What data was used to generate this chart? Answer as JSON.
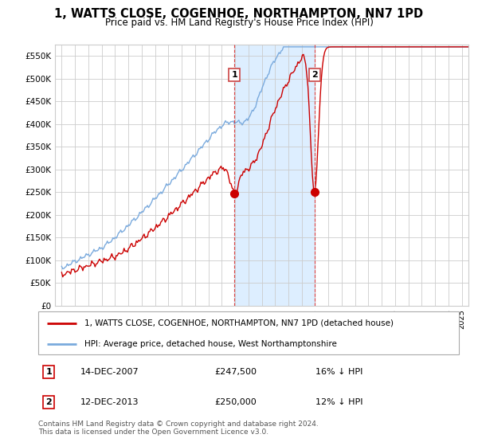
{
  "title": "1, WATTS CLOSE, COGENHOE, NORTHAMPTON, NN7 1PD",
  "subtitle": "Price paid vs. HM Land Registry's House Price Index (HPI)",
  "legend_label_red": "1, WATTS CLOSE, COGENHOE, NORTHAMPTON, NN7 1PD (detached house)",
  "legend_label_blue": "HPI: Average price, detached house, West Northamptonshire",
  "annotation1_date": "14-DEC-2007",
  "annotation1_price": "£247,500",
  "annotation1_pct": "16% ↓ HPI",
  "annotation2_date": "12-DEC-2013",
  "annotation2_price": "£250,000",
  "annotation2_pct": "12% ↓ HPI",
  "footer": "Contains HM Land Registry data © Crown copyright and database right 2024.\nThis data is licensed under the Open Government Licence v3.0.",
  "sale1_x": 2007.95,
  "sale1_y": 247500,
  "sale2_x": 2013.95,
  "sale2_y": 250000,
  "shade_x1": 2007.95,
  "shade_x2": 2013.95,
  "ylim_min": 0,
  "ylim_max": 575000,
  "yticks": [
    0,
    50000,
    100000,
    150000,
    200000,
    250000,
    300000,
    350000,
    400000,
    450000,
    500000,
    550000
  ],
  "ytick_labels": [
    "£0",
    "£50K",
    "£100K",
    "£150K",
    "£200K",
    "£250K",
    "£300K",
    "£350K",
    "£400K",
    "£450K",
    "£500K",
    "£550K"
  ],
  "color_red": "#cc0000",
  "color_blue": "#7aaadd",
  "color_shade": "#ddeeff",
  "color_grid": "#cccccc",
  "color_bg": "#ffffff",
  "xlim_min": 1994.5,
  "xlim_max": 2025.5
}
